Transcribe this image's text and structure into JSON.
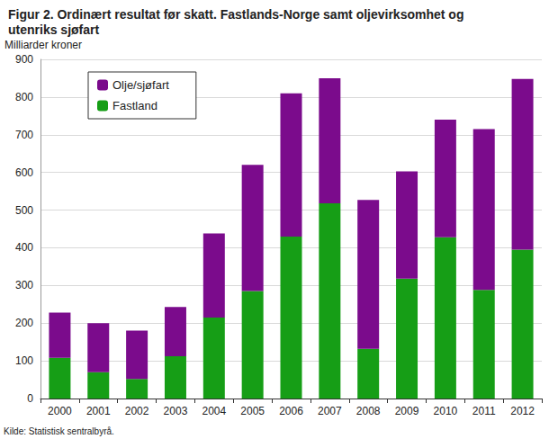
{
  "chart_data": {
    "type": "bar",
    "title": "Figur 2. Ordinært resultat før skatt. Fastlands-Norge samt oljevirksomhet og\nutenriks sjøfart",
    "y_label": "Milliarder kroner",
    "annotations": [
      "Kilde: Statistisk sentralbyrå."
    ],
    "categories": [
      "2000",
      "2001",
      "2002",
      "2003",
      "2004",
      "2005",
      "2006",
      "2007",
      "2008",
      "2009",
      "2010",
      "2011",
      "2012"
    ],
    "series": [
      {
        "name": "Olje/sjøfart",
        "color": "#7b0b8c",
        "values": [
          120,
          130,
          128,
          131,
          223,
          335,
          380,
          332,
          395,
          285,
          312,
          427,
          453
        ]
      },
      {
        "name": "Fastland",
        "color": "#169e16",
        "values": [
          108,
          70,
          52,
          112,
          215,
          285,
          430,
          518,
          132,
          318,
          428,
          288,
          395
        ]
      }
    ],
    "stacked": true,
    "ylim": [
      0,
      900
    ],
    "yticks": [
      0,
      100,
      200,
      300,
      400,
      500,
      600,
      700,
      800,
      900
    ],
    "grid": true,
    "legend": "upper left"
  }
}
